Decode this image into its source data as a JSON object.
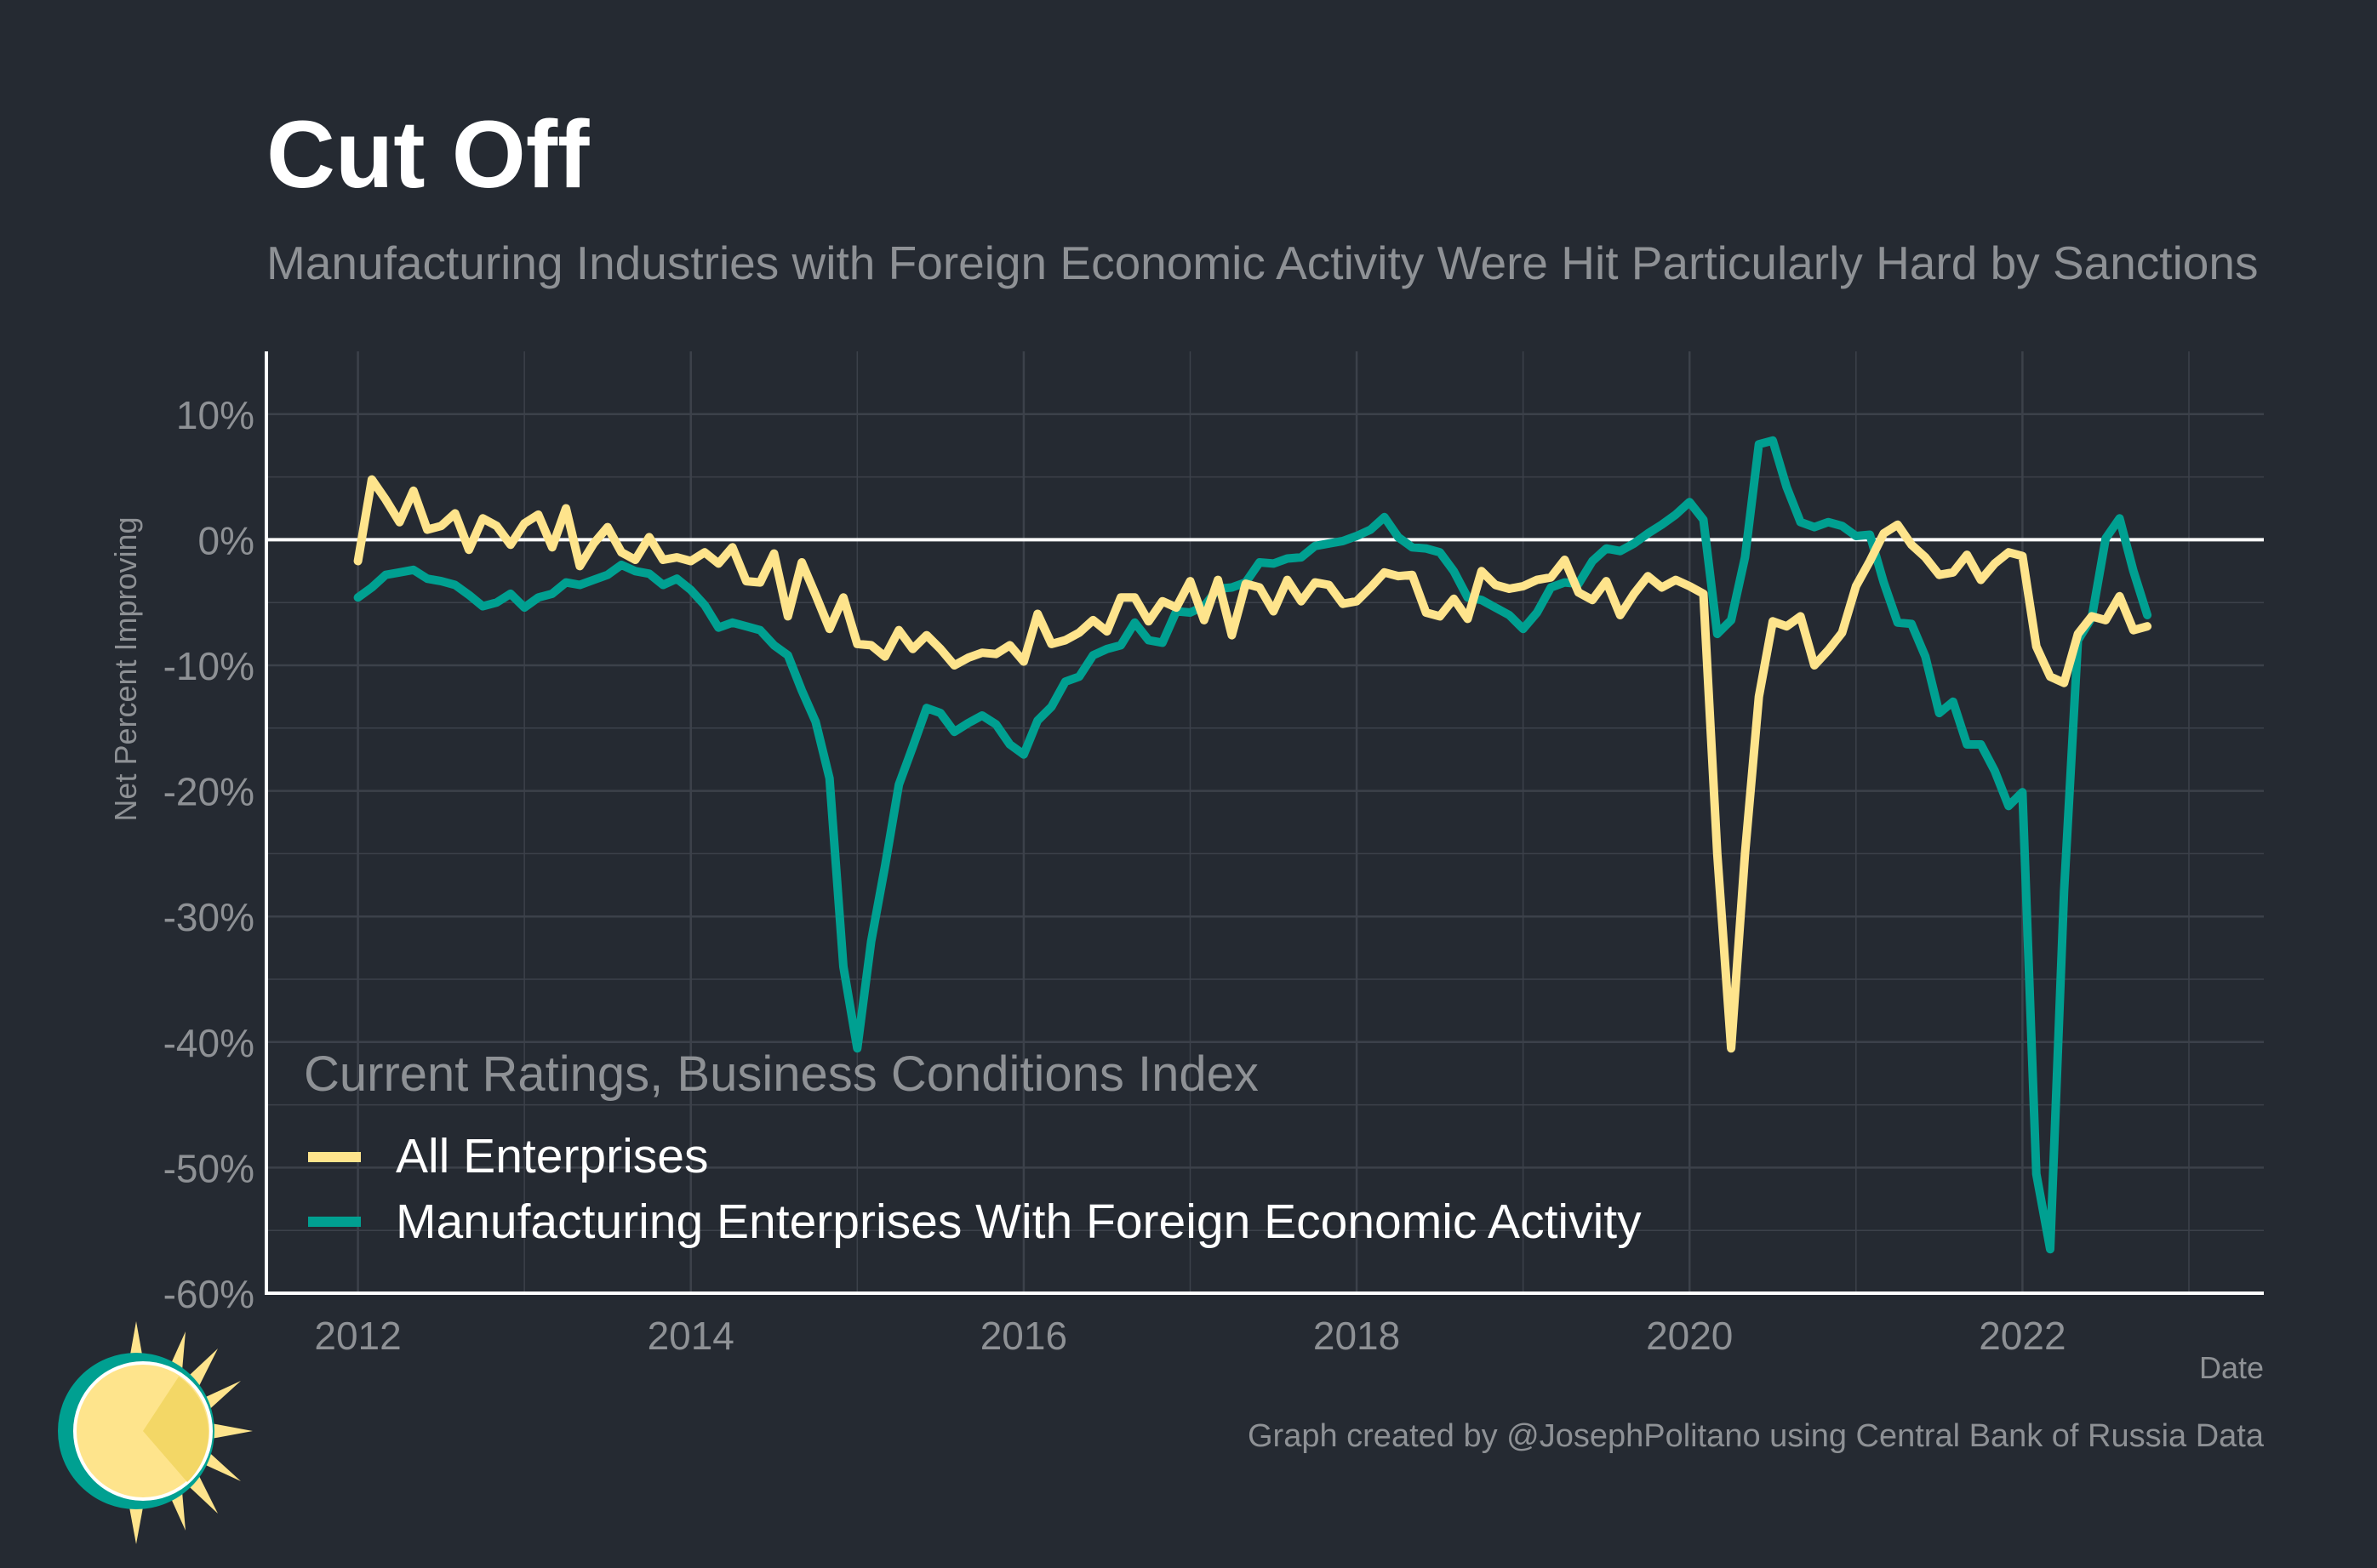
{
  "colors": {
    "background": "#252A32",
    "all_enterprises": "#FEE48C",
    "manufacturing_foreign": "#00A091",
    "title": "#FFFFFF",
    "subtitle": "#8E9195",
    "gridline": "#3C414A",
    "axis": "#FFFFFF"
  },
  "chart_data": {
    "type": "line",
    "title": "Cut Off",
    "subtitle": "Manufacturing Industries with Foreign Economic Activity Were Hit Particularly Hard by Sanctions",
    "xlabel": "Date",
    "ylabel": "Net Percent Improving",
    "caption": "Graph created by @JosephPolitano using Central Bank of Russia Data",
    "xlim": [
      2011.45,
      2023.45
    ],
    "ylim": [
      -60,
      15
    ],
    "x_ticks": [
      2012,
      2014,
      2016,
      2018,
      2020,
      2022
    ],
    "x_tick_labels": [
      "2012",
      "2014",
      "2016",
      "2018",
      "2020",
      "2022"
    ],
    "y_ticks": [
      -60,
      -50,
      -40,
      -30,
      -20,
      -10,
      0,
      10
    ],
    "y_tick_labels": [
      "-60%",
      "-50%",
      "-40%",
      "-30%",
      "-20%",
      "-10%",
      "0%",
      "10%"
    ],
    "grid": true,
    "zero_line": true,
    "legend_title": "Current Ratings, Business Conditions Index",
    "legend_position": "bottom-left",
    "series": [
      {
        "name": "All Enterprises",
        "color": "#FEE48C",
        "start": 2012.0,
        "step_months": 1,
        "values": [
          -1.7,
          4.8,
          3.2,
          1.4,
          3.9,
          0.8,
          1.1,
          2.1,
          -0.8,
          1.7,
          1.1,
          -0.4,
          1.3,
          2.0,
          -0.6,
          2.5,
          -2.1,
          -0.3,
          1.0,
          -1.0,
          -1.6,
          0.2,
          -1.6,
          -1.4,
          -1.7,
          -1.0,
          -1.9,
          -0.6,
          -3.3,
          -3.4,
          -1.1,
          -6.1,
          -1.8,
          -4.4,
          -7.1,
          -4.6,
          -8.3,
          -8.4,
          -9.3,
          -7.2,
          -8.7,
          -7.6,
          -8.7,
          -10.0,
          -9.4,
          -9.0,
          -9.1,
          -8.4,
          -9.7,
          -5.9,
          -8.3,
          -8.0,
          -7.4,
          -6.4,
          -7.3,
          -4.6,
          -4.6,
          -6.5,
          -4.9,
          -5.4,
          -3.3,
          -6.4,
          -3.2,
          -7.6,
          -3.5,
          -3.8,
          -5.7,
          -3.2,
          -4.9,
          -3.4,
          -3.6,
          -5.1,
          -4.9,
          -3.8,
          -2.6,
          -2.9,
          -2.8,
          -5.8,
          -6.1,
          -4.7,
          -6.3,
          -2.5,
          -3.6,
          -3.9,
          -3.7,
          -3.2,
          -3.0,
          -1.6,
          -4.2,
          -4.8,
          -3.3,
          -6.0,
          -4.3,
          -2.9,
          -3.8,
          -3.2,
          -3.7,
          -4.3,
          -25.0,
          -40.5,
          -25.0,
          -12.5,
          -6.5,
          -6.9,
          -6.1,
          -10.0,
          -8.8,
          -7.4,
          -3.7,
          -1.7,
          0.5,
          1.2,
          -0.4,
          -1.4,
          -2.8,
          -2.6,
          -1.2,
          -3.2,
          -1.9,
          -1.0,
          -1.3,
          -8.5,
          -10.9,
          -11.4,
          -7.5,
          -6.1,
          -6.4,
          -4.5,
          -7.2,
          -6.9
        ]
      },
      {
        "name": "Manufacturing Enterprises With Foreign Economic Activity",
        "color": "#00A091",
        "start": 2012.0,
        "step_months": 1,
        "values": [
          -4.6,
          -3.8,
          -2.8,
          -2.6,
          -2.4,
          -3.1,
          -3.3,
          -3.6,
          -4.4,
          -5.3,
          -5.0,
          -4.3,
          -5.4,
          -4.6,
          -4.3,
          -3.4,
          -3.6,
          -3.2,
          -2.8,
          -2.0,
          -2.5,
          -2.7,
          -3.6,
          -3.1,
          -4.0,
          -5.2,
          -7.0,
          -6.6,
          -6.9,
          -7.2,
          -8.4,
          -9.2,
          -12.0,
          -14.5,
          -19.0,
          -34.0,
          -40.5,
          -32.0,
          -26.0,
          -19.5,
          -16.5,
          -13.4,
          -13.8,
          -15.3,
          -14.6,
          -14.0,
          -14.7,
          -16.3,
          -17.1,
          -14.4,
          -13.3,
          -11.3,
          -10.9,
          -9.2,
          -8.7,
          -8.4,
          -6.6,
          -8.0,
          -8.2,
          -5.7,
          -5.8,
          -5.3,
          -3.9,
          -3.8,
          -3.4,
          -1.8,
          -1.9,
          -1.5,
          -1.4,
          -0.5,
          -0.3,
          -0.1,
          0.3,
          0.8,
          1.8,
          0.2,
          -0.6,
          -0.7,
          -1.0,
          -2.5,
          -4.6,
          -4.8,
          -5.4,
          -6.0,
          -7.1,
          -5.8,
          -3.8,
          -3.4,
          -3.5,
          -1.7,
          -0.7,
          -0.9,
          -0.3,
          0.5,
          1.2,
          2.0,
          3.0,
          1.6,
          -7.5,
          -6.4,
          -1.4,
          7.6,
          7.9,
          4.2,
          1.4,
          1.0,
          1.4,
          1.1,
          0.3,
          0.4,
          -3.4,
          -6.6,
          -6.7,
          -9.3,
          -13.8,
          -12.9,
          -16.3,
          -16.3,
          -18.4,
          -21.2,
          -20.1,
          -50.5,
          -56.5,
          -28.0,
          -8.0,
          -6.2,
          0.1,
          1.7,
          -2.5,
          -6.0
        ]
      }
    ]
  }
}
